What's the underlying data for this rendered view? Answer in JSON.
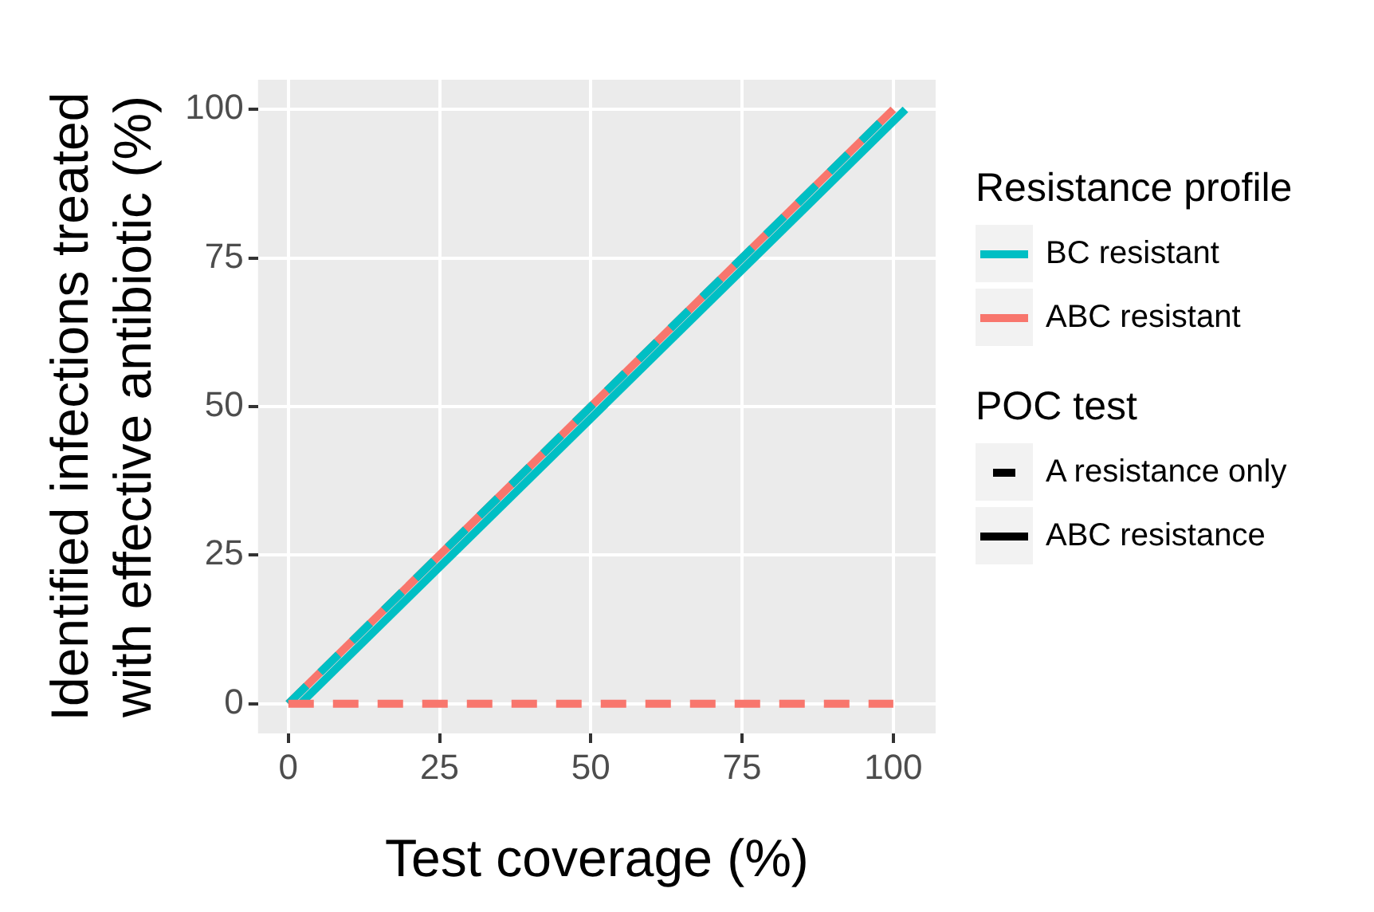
{
  "chart_data": {
    "type": "line",
    "xlabel": "Test coverage (%)",
    "ylabel": "Identified infections treated\nwith effective antibiotic (%)",
    "legend_title": "Resistance profile",
    "series": [
      {
        "name": "BC resistant",
        "color": "#00bfc4",
        "x": [
          2,
          102
        ],
        "values": [
          0,
          100
        ],
        "line_style": "solid"
      },
      {
        "name": "ABC resistant",
        "color": "#f8766d",
        "x": [
          0,
          100
        ],
        "values": [
          0,
          100
        ],
        "line_style": "solid"
      },
      {
        "color": "#00bfc4",
        "x": [
          0,
          100
        ],
        "values": [
          0,
          100
        ],
        "line_style": "dashed"
      },
      {
        "color": "#f8766d",
        "x": [
          0,
          100
        ],
        "values": [
          0,
          0
        ],
        "line_style": "dashed"
      }
    ],
    "annotations": [
      "POC test",
      "A resistance only",
      "ABC resistance"
    ],
    "xlim": [
      -5,
      107
    ],
    "ylim": [
      -5,
      105
    ],
    "xticks": [
      0,
      25,
      50,
      75,
      100
    ],
    "yticks": [
      0,
      25,
      50,
      75,
      100
    ],
    "grid": true,
    "legend": "right",
    "marker": "none"
  }
}
